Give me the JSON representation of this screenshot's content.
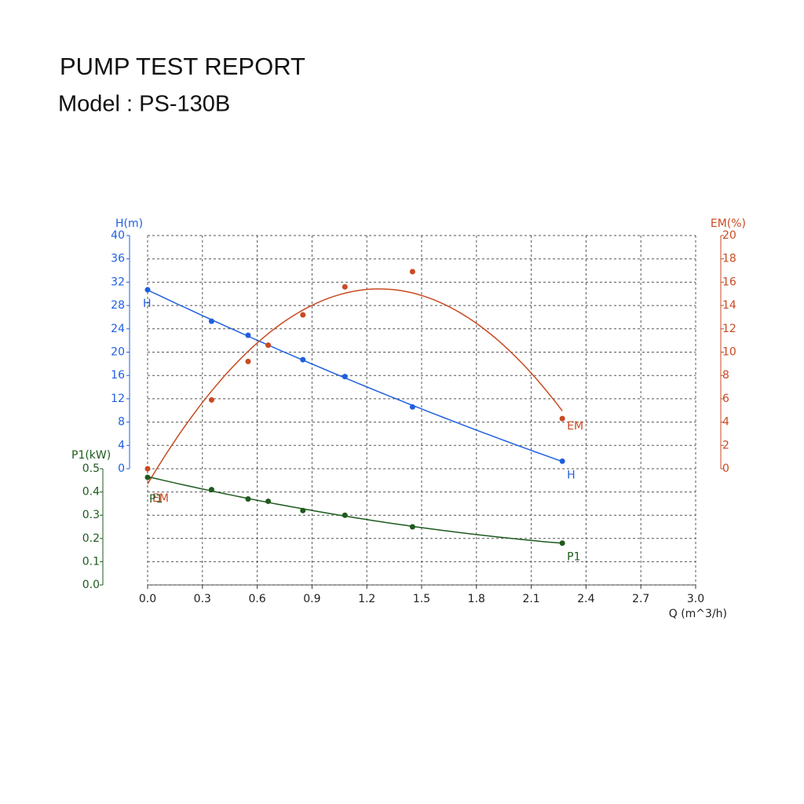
{
  "chart_data": {
    "type": "line",
    "title": "PUMP TEST REPORT",
    "subtitle": "Model : PS-130B",
    "x_label": "Q (m^3/h)",
    "y_label": "H(m)",
    "y2_label": "EM(%)",
    "y3_label": "P1(kW)",
    "x": [
      0,
      0.35,
      0.55,
      0.66,
      0.85,
      1.08,
      1.45,
      2.27
    ],
    "xlim": [
      0,
      3
    ],
    "xticks": [
      {
        "value": 0,
        "label": "0.0"
      },
      0.3,
      0.6,
      0.9,
      1.2,
      1.5,
      1.8,
      2.1,
      2.4,
      2.7,
      {
        "value": 3,
        "label": "3.0"
      }
    ],
    "ylim": [
      0,
      40
    ],
    "yticks": [
      0,
      4,
      8,
      12,
      16,
      20,
      24,
      28,
      32,
      36,
      40
    ],
    "y2lim": [
      0,
      20
    ],
    "y2ticks": [
      0,
      2,
      4,
      6,
      8,
      10,
      12,
      14,
      16,
      18,
      20
    ],
    "y3lim": [
      0,
      0.5
    ],
    "y3ticks": [
      {
        "value": 0,
        "label": "0.0"
      },
      0.1,
      0.2,
      0.3,
      0.4,
      {
        "value": 0.5,
        "label": "0.5"
      }
    ],
    "grid": true,
    "series": [
      {
        "name": "H",
        "color": "#1f5fe0",
        "axis": "y",
        "values": [
          30.7,
          25.3,
          22.9,
          null,
          18.7,
          15.8,
          10.6,
          1.3
        ]
      },
      {
        "name": "EM",
        "color": "#c94a22",
        "axis": "y2",
        "values": [
          0,
          5.9,
          9.2,
          10.6,
          13.2,
          15.6,
          16.9,
          4.3
        ]
      },
      {
        "name": "P1",
        "color": "#1e5a1e",
        "axis": "y3",
        "values": [
          0.463,
          0.41,
          0.37,
          0.36,
          0.32,
          0.3,
          0.25,
          0.18
        ]
      }
    ]
  }
}
